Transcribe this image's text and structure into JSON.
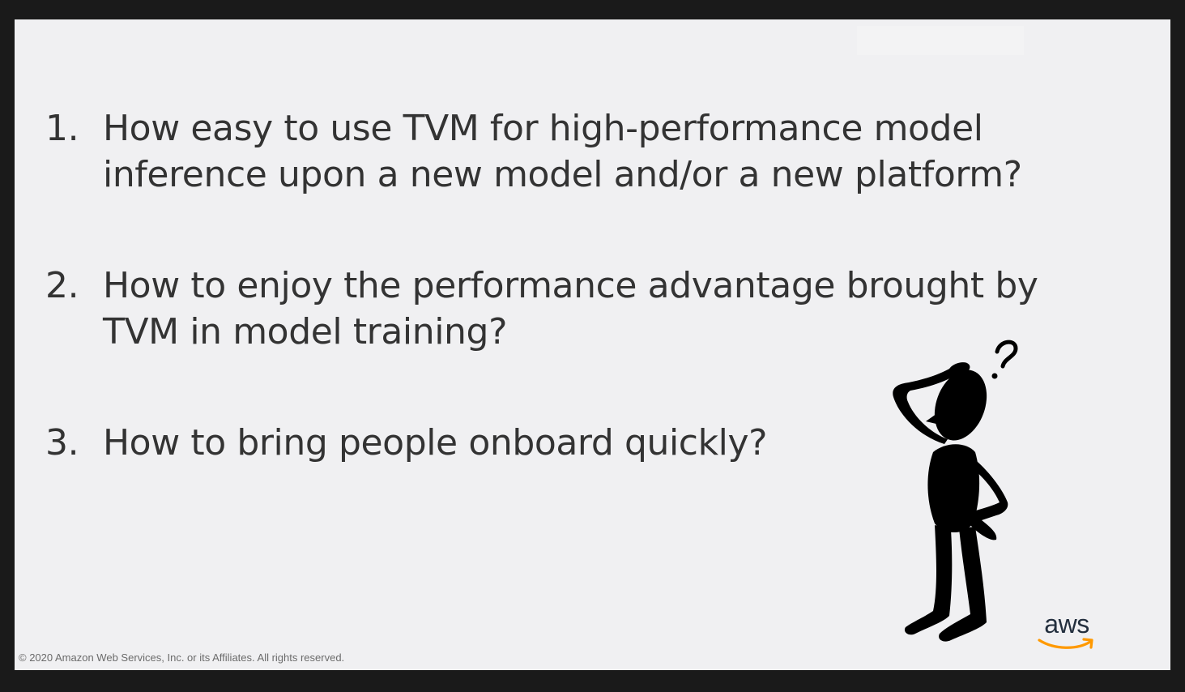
{
  "slide": {
    "questions": [
      {
        "number": "1.",
        "text": "How easy to use TVM for high-performance model inference upon a new model and/or a new platform?"
      },
      {
        "number": "2.",
        "text": "How to enjoy the performance advantage brought by TVM in model training?"
      },
      {
        "number": "3.",
        "text": "How to bring people onboard quickly?"
      }
    ],
    "illustration_icon": "thinking-person-question-mark",
    "logo_text": "aws",
    "logo_accent_color": "#ff9900",
    "copyright": "© 2020 Amazon Web Services, Inc. or its Affiliates. All rights reserved."
  }
}
